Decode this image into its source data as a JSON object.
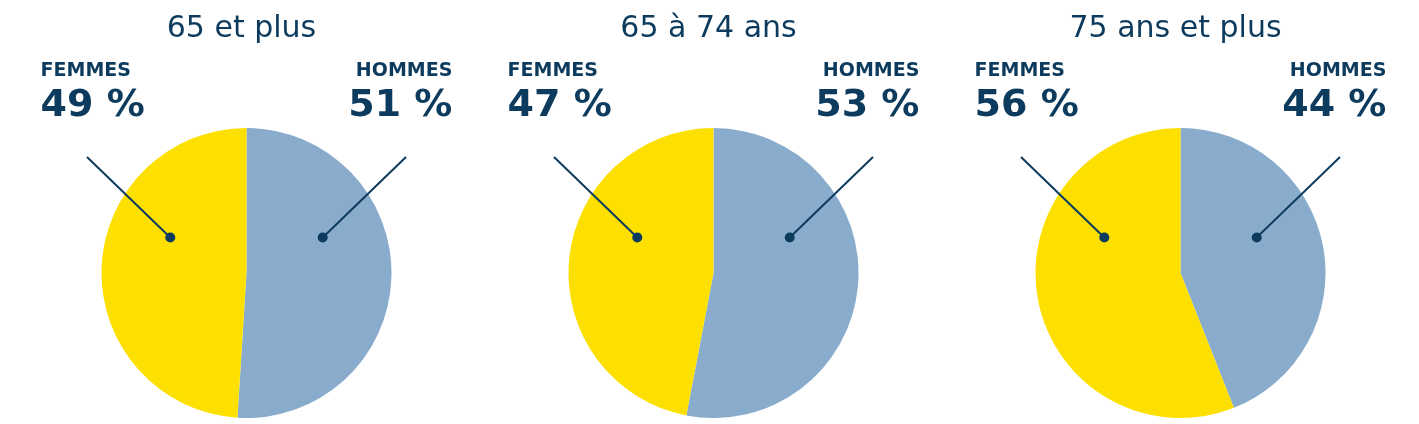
{
  "chart_data": [
    {
      "type": "pie",
      "title": "65 et plus",
      "categories": [
        "HOMMES",
        "FEMMES"
      ],
      "values": [
        51,
        49
      ],
      "colors": [
        "#89accd",
        "#fde000"
      ],
      "value_labels": [
        "51 %",
        "49 %"
      ],
      "legend": false
    },
    {
      "type": "pie",
      "title": "65 à 74 ans",
      "categories": [
        "HOMMES",
        "FEMMES"
      ],
      "values": [
        53,
        47
      ],
      "colors": [
        "#89accd",
        "#fde000"
      ],
      "value_labels": [
        "53 %",
        "47 %"
      ],
      "legend": false
    },
    {
      "type": "pie",
      "title": "75 ans et plus",
      "categories": [
        "HOMMES",
        "FEMMES"
      ],
      "values": [
        44,
        56
      ],
      "colors": [
        "#89accd",
        "#fde000"
      ],
      "value_labels": [
        "44 %",
        "56 %"
      ],
      "legend": false
    }
  ]
}
